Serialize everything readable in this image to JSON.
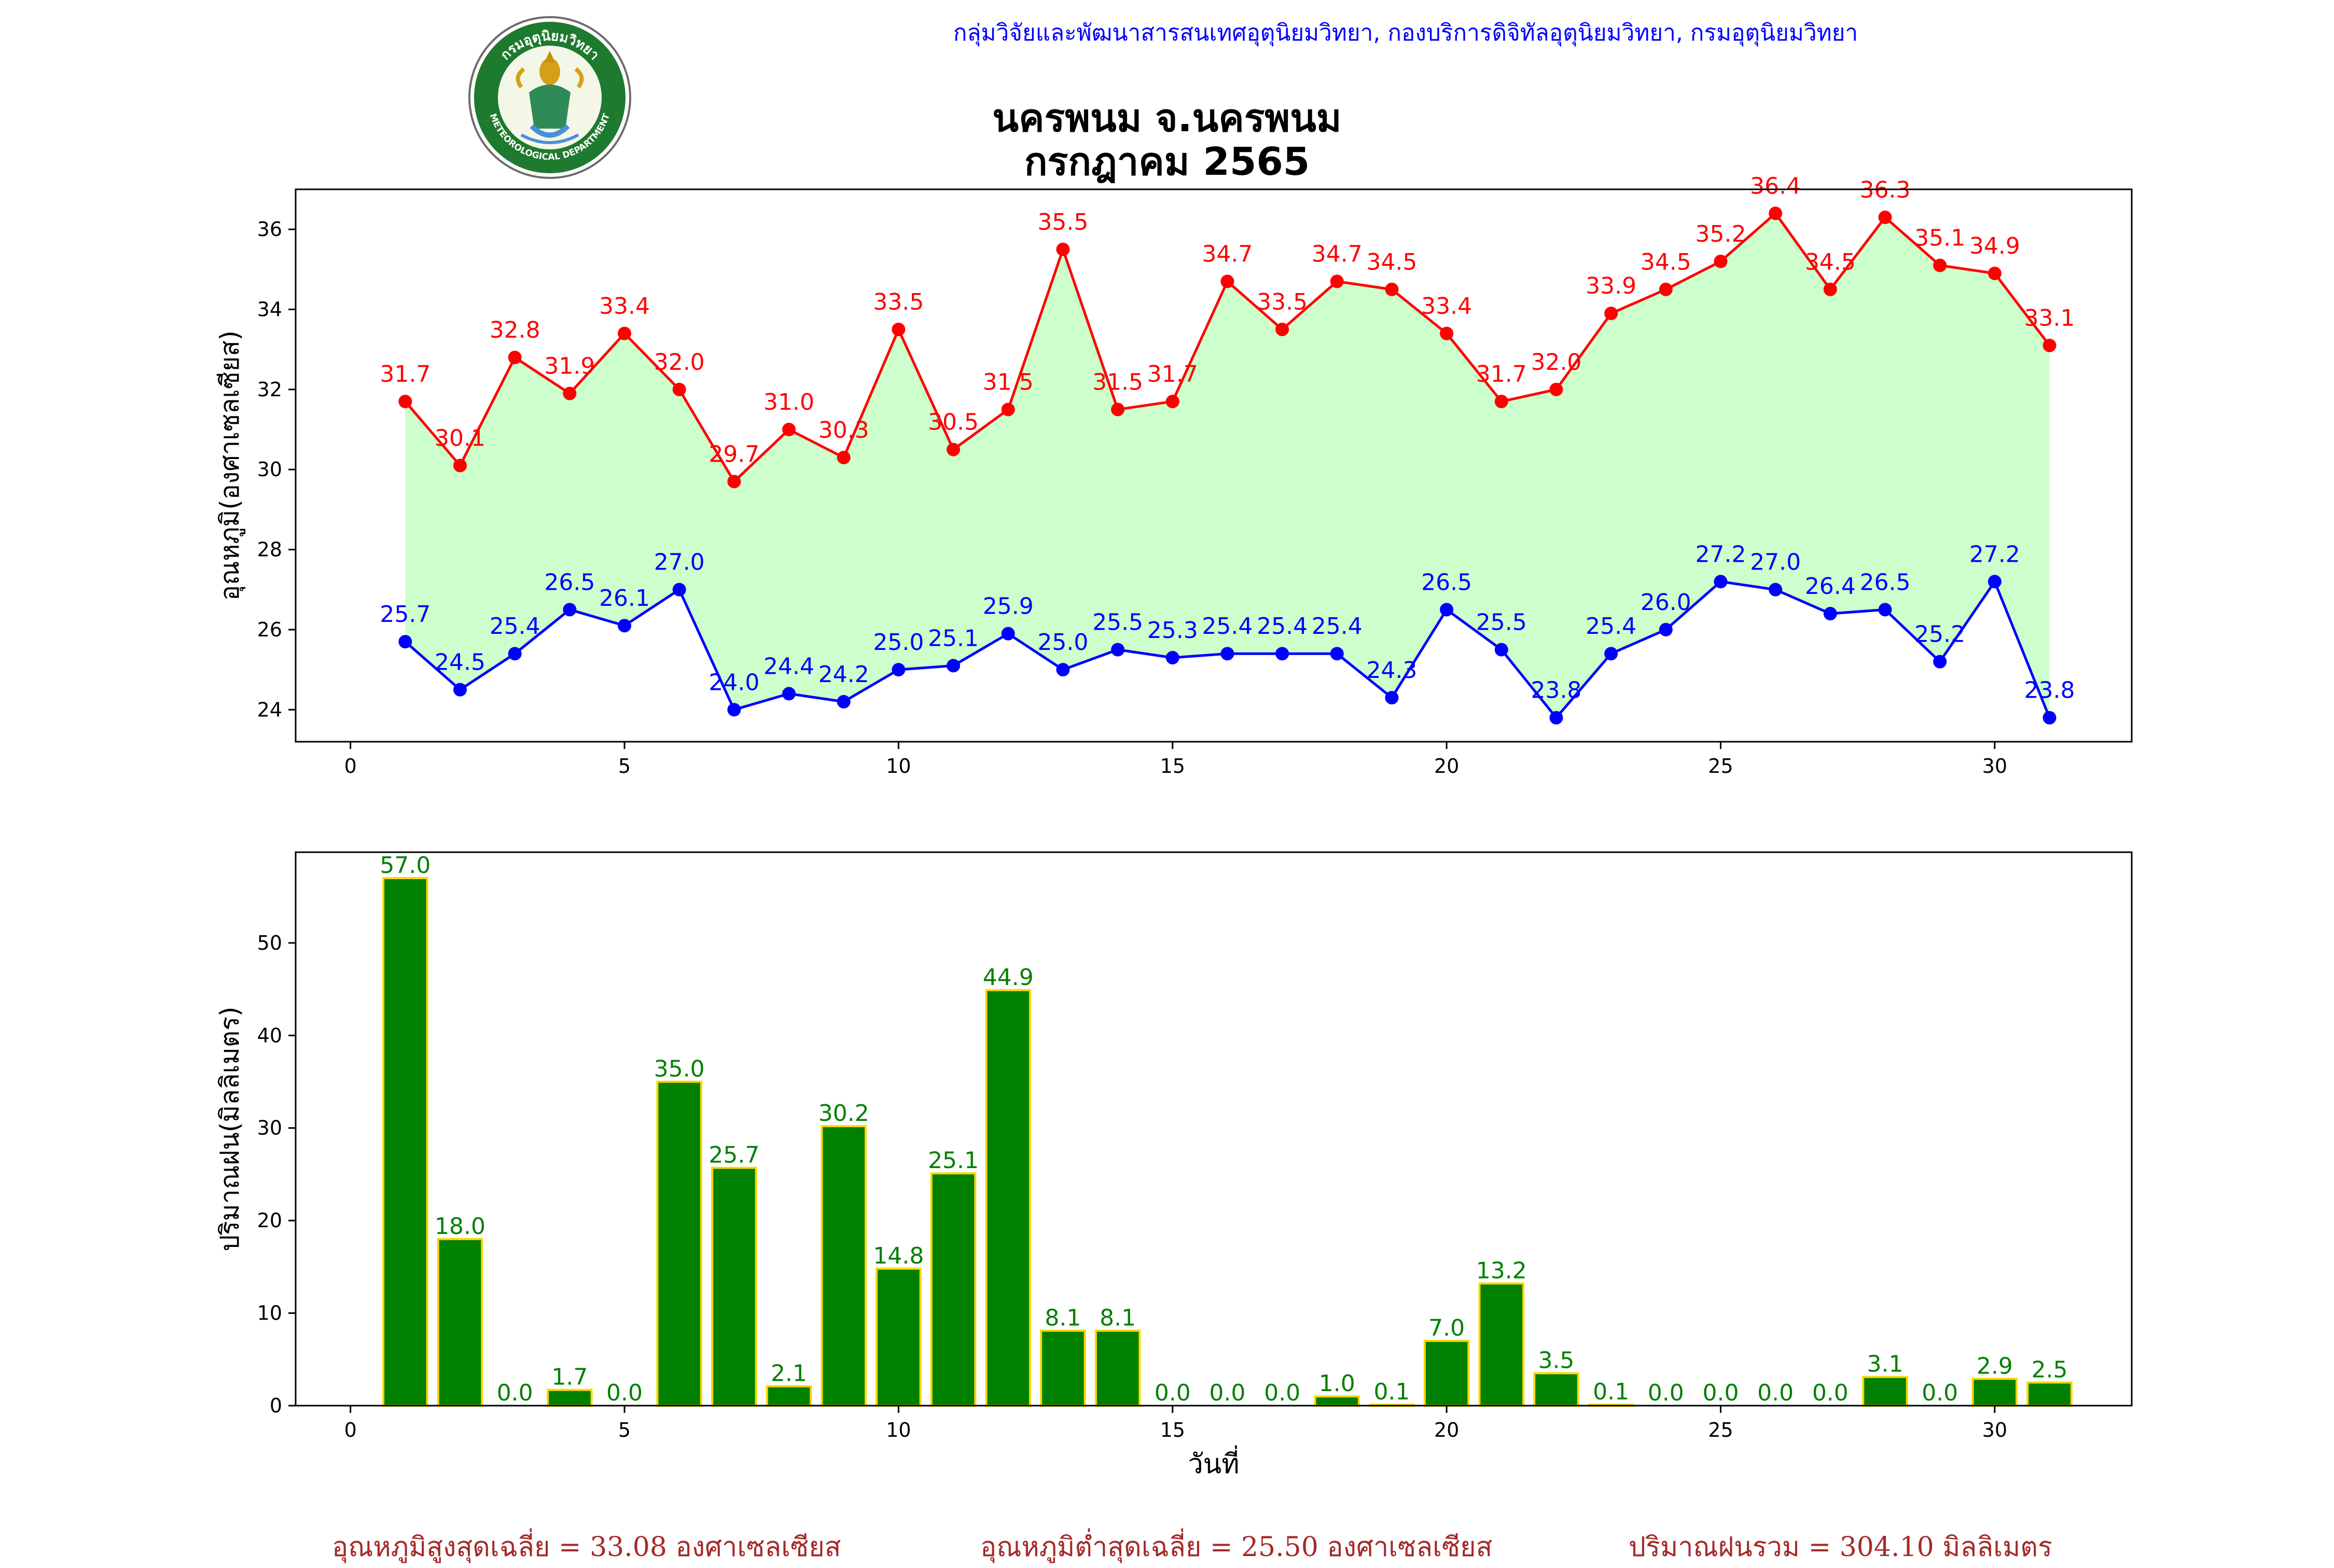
{
  "header": {
    "agency": "กลุ่มวิจัยและพัฒนาสารสนเทศอุตุนิยมวิทยา, กองบริการดิจิทัลอุตุนิยมวิทยา, กรมอุตุนิยมวิทยา",
    "title": "นครพนม จ.นครพนม",
    "subtitle": "กรกฎาคม 2565",
    "logo_text": "METEOROLOGICAL DEPARTMENT",
    "logo_thai": "กรมอุตุนิยมวิทยา"
  },
  "chart_data": [
    {
      "type": "line",
      "title": "",
      "xlabel": "",
      "ylabel": "อุณหภูมิ(องศาเซลเซียส)",
      "xlim": [
        -1,
        32.5
      ],
      "ylim": [
        23.2,
        37
      ],
      "xticks": [
        0,
        5,
        10,
        15,
        20,
        25,
        30
      ],
      "yticks": [
        24,
        26,
        28,
        30,
        32,
        34,
        36
      ],
      "fill_between": {
        "color": "#ccffcc"
      },
      "x": [
        1,
        2,
        3,
        4,
        5,
        6,
        7,
        8,
        9,
        10,
        11,
        12,
        13,
        14,
        15,
        16,
        17,
        18,
        19,
        20,
        21,
        22,
        23,
        24,
        25,
        26,
        27,
        28,
        29,
        30,
        31
      ],
      "series": [
        {
          "color": "#ff0000",
          "values": [
            31.7,
            30.1,
            32.8,
            31.9,
            33.4,
            32.0,
            29.7,
            31.0,
            30.3,
            33.5,
            30.5,
            31.5,
            35.5,
            31.5,
            31.7,
            34.7,
            33.5,
            34.7,
            34.5,
            33.4,
            31.7,
            32.0,
            33.9,
            34.5,
            35.2,
            36.4,
            34.5,
            36.3,
            35.1,
            34.9,
            33.1
          ]
        },
        {
          "color": "#0000ff",
          "values": [
            25.7,
            24.5,
            25.4,
            26.5,
            26.1,
            27.0,
            24.0,
            24.4,
            24.2,
            25.0,
            25.1,
            25.9,
            25.0,
            25.5,
            25.3,
            25.4,
            25.4,
            25.4,
            24.3,
            26.5,
            25.5,
            23.8,
            25.4,
            26.0,
            27.2,
            27.0,
            26.4,
            26.5,
            25.2,
            27.2,
            23.8
          ]
        }
      ]
    },
    {
      "type": "bar",
      "title": "",
      "xlabel": "วันที่",
      "ylabel": "ปริมาณฝน(มิลลิเมตร)",
      "xlim": [
        -1,
        32.5
      ],
      "ylim": [
        0,
        59.8
      ],
      "xticks": [
        0,
        5,
        10,
        15,
        20,
        25,
        30
      ],
      "yticks": [
        0,
        10,
        20,
        30,
        40,
        50
      ],
      "bar_color": "#008000",
      "edge_color": "#ffd700",
      "label_color": "#008000",
      "x": [
        1,
        2,
        3,
        4,
        5,
        6,
        7,
        8,
        9,
        10,
        11,
        12,
        13,
        14,
        15,
        16,
        17,
        18,
        19,
        20,
        21,
        22,
        23,
        24,
        25,
        26,
        27,
        28,
        29,
        30,
        31
      ],
      "values": [
        57.0,
        18.0,
        0.0,
        1.7,
        0.0,
        35.0,
        25.7,
        2.1,
        30.2,
        14.8,
        25.1,
        44.9,
        8.1,
        8.1,
        0.0,
        0.0,
        0.0,
        1.0,
        0.1,
        7.0,
        13.2,
        3.5,
        0.1,
        0.0,
        0.0,
        0.0,
        0.0,
        3.1,
        0.0,
        2.9,
        2.5
      ]
    }
  ],
  "footer": {
    "avg_max": "อุณหภูมิสูงสุดเฉลี่ย = 33.08 องศาเซลเซียส",
    "avg_min": "อุณหภูมิต่ำสุดเฉลี่ย = 25.50 องศาเซลเซียส",
    "total_rain": "ปริมาณฝนรวม = 304.10 มิลลิเมตร"
  }
}
